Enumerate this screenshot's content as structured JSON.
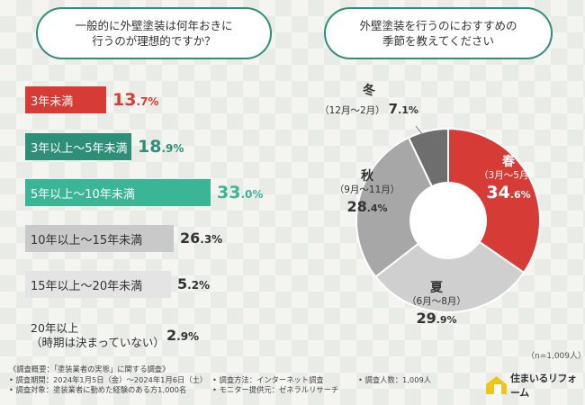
{
  "q1": {
    "text": "一般的に外壁塗装は何年おきに\n行うのが理想的ですか？"
  },
  "q2": {
    "text": "外壁塗装を行うのにおすすめの\n季節を教えてください"
  },
  "bars": [
    {
      "label": "3年未満",
      "pct_int": "13",
      "pct_dec": ".7",
      "pct_sign": "%",
      "value": 13.7,
      "color": "#d73b35",
      "text_color": "#ffffff",
      "pct_color": "#d73b35"
    },
    {
      "label": "3年以上〜5年未満",
      "pct_int": "18",
      "pct_dec": ".9",
      "pct_sign": "%",
      "value": 18.9,
      "color": "#2e8f78",
      "text_color": "#ffffff",
      "pct_color": "#2e8f78"
    },
    {
      "label": "5年以上〜10年未満",
      "pct_int": "33",
      "pct_dec": ".0",
      "pct_sign": "%",
      "value": 33.0,
      "color": "#3ab596",
      "text_color": "#ffffff",
      "pct_color": "#3ab596"
    },
    {
      "label": "10年以上〜15年未満",
      "pct_int": "26",
      "pct_dec": ".3",
      "pct_sign": "%",
      "value": 26.3,
      "color": "#c9c9c9",
      "text_color": "#333333",
      "pct_color": "#333333"
    },
    {
      "label": "15年以上〜20年未満",
      "pct_int": "5",
      "pct_dec": ".2",
      "pct_sign": "%",
      "value": 5.2,
      "color": "#e4e4e4",
      "text_color": "#333333",
      "pct_color": "#333333"
    },
    {
      "label": "20年以上\n（時期は決まっていない）",
      "pct_int": "2",
      "pct_dec": ".9",
      "pct_sign": "%",
      "value": 2.9,
      "color": "#eeeeee",
      "text_color": "#333333",
      "pct_color": "#333333"
    }
  ],
  "chart_data": [
    {
      "type": "bar",
      "title": "一般的に外壁塗装は何年おきに行うのが理想的ですか？",
      "categories": [
        "3年未満",
        "3年以上〜5年未満",
        "5年以上〜10年未満",
        "10年以上〜15年未満",
        "15年以上〜20年未満",
        "20年以上（時期は決まっていない）"
      ],
      "values": [
        13.7,
        18.9,
        33.0,
        26.3,
        5.2,
        2.9
      ],
      "unit": "%"
    },
    {
      "type": "pie",
      "title": "外壁塗装を行うのにおすすめの季節を教えてください",
      "categories": [
        "春",
        "夏",
        "秋",
        "冬"
      ],
      "values": [
        34.6,
        29.9,
        28.4,
        7.1
      ],
      "unit": "%"
    }
  ],
  "pie": {
    "slices": [
      {
        "name": "春",
        "period": "（3月〜5月）",
        "pct_int": "34",
        "pct_dec": ".6",
        "pct_sign": "%",
        "value": 34.6,
        "color": "#d73b35",
        "text_color": "#ffffff"
      },
      {
        "name": "夏",
        "period": "（6月〜8月）",
        "pct_int": "29",
        "pct_dec": ".9",
        "pct_sign": "%",
        "value": 29.9,
        "color": "#cfcfcf",
        "text_color": "#333333"
      },
      {
        "name": "秋",
        "period": "（9月〜11月）",
        "pct_int": "28",
        "pct_dec": ".4",
        "pct_sign": "%",
        "value": 28.4,
        "color": "#a7a7a7",
        "text_color": "#333333"
      },
      {
        "name": "冬",
        "period": "（12月〜2月）",
        "pct_int": "7",
        "pct_dec": ".1",
        "pct_sign": "%",
        "value": 7.1,
        "color": "#6e6e6e",
        "text_color": "#333333"
      }
    ]
  },
  "sample": "（n=1,009人）",
  "footer": {
    "summary": "《調査概要：「塗装業者の実態」に関する調査》",
    "period": "• 調査期間：2024年1月5日（金）〜2024年1月6日（土）",
    "target": "• 調査対象：塗装業者に勤めた経験のある方1,000名",
    "method": "• 調査方法：インターネット調査",
    "provider": "• モニター提供元：ゼネラルリサーチ",
    "count": "• 調査人数：1,009人"
  },
  "logo": {
    "name": "住まいるリフォーム"
  }
}
